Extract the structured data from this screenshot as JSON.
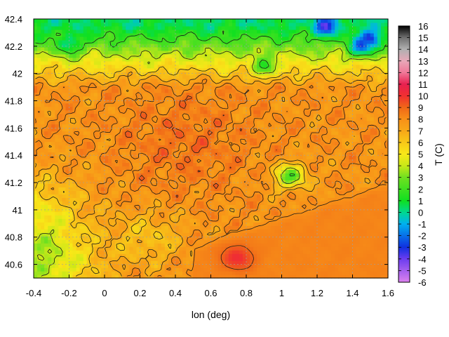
{
  "chart_data": {
    "type": "heatmap",
    "title": "",
    "xlabel": "lon (deg)",
    "colorbar_label": "T (C)",
    "xlim": [
      -0.4,
      1.6
    ],
    "ylim": [
      40.5,
      42.4
    ],
    "clim": [
      -6,
      16
    ],
    "x_ticks": [
      "-0.4",
      "-0.2",
      "0",
      "0.2",
      "0.4",
      "0.6",
      "0.8",
      "1",
      "1.2",
      "1.4",
      "1.6"
    ],
    "x_tick_values": [
      -0.4,
      -0.2,
      0,
      0.2,
      0.4,
      0.6,
      0.8,
      1,
      1.2,
      1.4,
      1.6
    ],
    "y_ticks": [
      "40.6",
      "40.8",
      "41",
      "41.2",
      "41.4",
      "41.6",
      "41.8",
      "42",
      "42.2",
      "42.4"
    ],
    "y_tick_values": [
      40.6,
      40.8,
      41,
      41.2,
      41.4,
      41.6,
      41.8,
      42,
      42.2,
      42.4
    ],
    "colorbar_ticks": [
      "-6",
      "-5",
      "-4",
      "-3",
      "-2",
      "-1",
      "0",
      "1",
      "2",
      "3",
      "4",
      "5",
      "6",
      "7",
      "8",
      "9",
      "10",
      "11",
      "12",
      "13",
      "14",
      "15",
      "16"
    ],
    "colorbar_values": [
      -6,
      -5,
      -4,
      -3,
      -2,
      -1,
      0,
      1,
      2,
      3,
      4,
      5,
      6,
      7,
      8,
      9,
      10,
      11,
      12,
      13,
      14,
      15,
      16
    ],
    "palette": [
      {
        "value": -6,
        "color": "#dc82ee"
      },
      {
        "value": -4,
        "color": "#6c3cf0"
      },
      {
        "value": -3,
        "color": "#1030e0"
      },
      {
        "value": -1,
        "color": "#00b0f0"
      },
      {
        "value": 0,
        "color": "#00d890"
      },
      {
        "value": 1,
        "color": "#10e020"
      },
      {
        "value": 3,
        "color": "#70e020"
      },
      {
        "value": 4,
        "color": "#c8e818"
      },
      {
        "value": 5,
        "color": "#f8e818"
      },
      {
        "value": 6,
        "color": "#f8c818"
      },
      {
        "value": 7,
        "color": "#f8a818"
      },
      {
        "value": 8,
        "color": "#f89018"
      },
      {
        "value": 9,
        "color": "#f06818"
      },
      {
        "value": 10,
        "color": "#f03030"
      },
      {
        "value": 11,
        "color": "#e82050"
      },
      {
        "value": 12,
        "color": "#f07898"
      },
      {
        "value": 13,
        "color": "#e8a8b8"
      },
      {
        "value": 14,
        "color": "#b0b0b0"
      },
      {
        "value": 15,
        "color": "#707070"
      },
      {
        "value": 16,
        "color": "#000000"
      }
    ],
    "grid": true,
    "contours": true,
    "field_features": {
      "base_temperature": 7.8,
      "warm_core": {
        "lon": 0.45,
        "lat": 41.5,
        "value": 8.7
      },
      "cold_north": {
        "lat_from": 41.9,
        "value_at_top": 0.5
      },
      "cold_peaks": [
        {
          "lon": 1.25,
          "lat": 42.35,
          "value": -3.5
        },
        {
          "lon": 1.5,
          "lat": 42.25,
          "value": -4
        },
        {
          "lon": 1.45,
          "lat": 42.2,
          "value": -2
        },
        {
          "lon": -0.2,
          "lat": 42.22,
          "value": -0.5
        },
        {
          "lon": 0.9,
          "lat": 42.05,
          "value": 1.5
        }
      ],
      "cool_southwest": {
        "lon": -0.35,
        "lat": 40.6,
        "value": 3
      },
      "cool_inland_patch": {
        "lon": 1.05,
        "lat": 41.25,
        "value": 2.5
      },
      "coastal_zone": {
        "value": 8.3
      },
      "warm_delta": {
        "lon": 0.75,
        "lat": 40.65,
        "value": 10.5
      }
    }
  }
}
